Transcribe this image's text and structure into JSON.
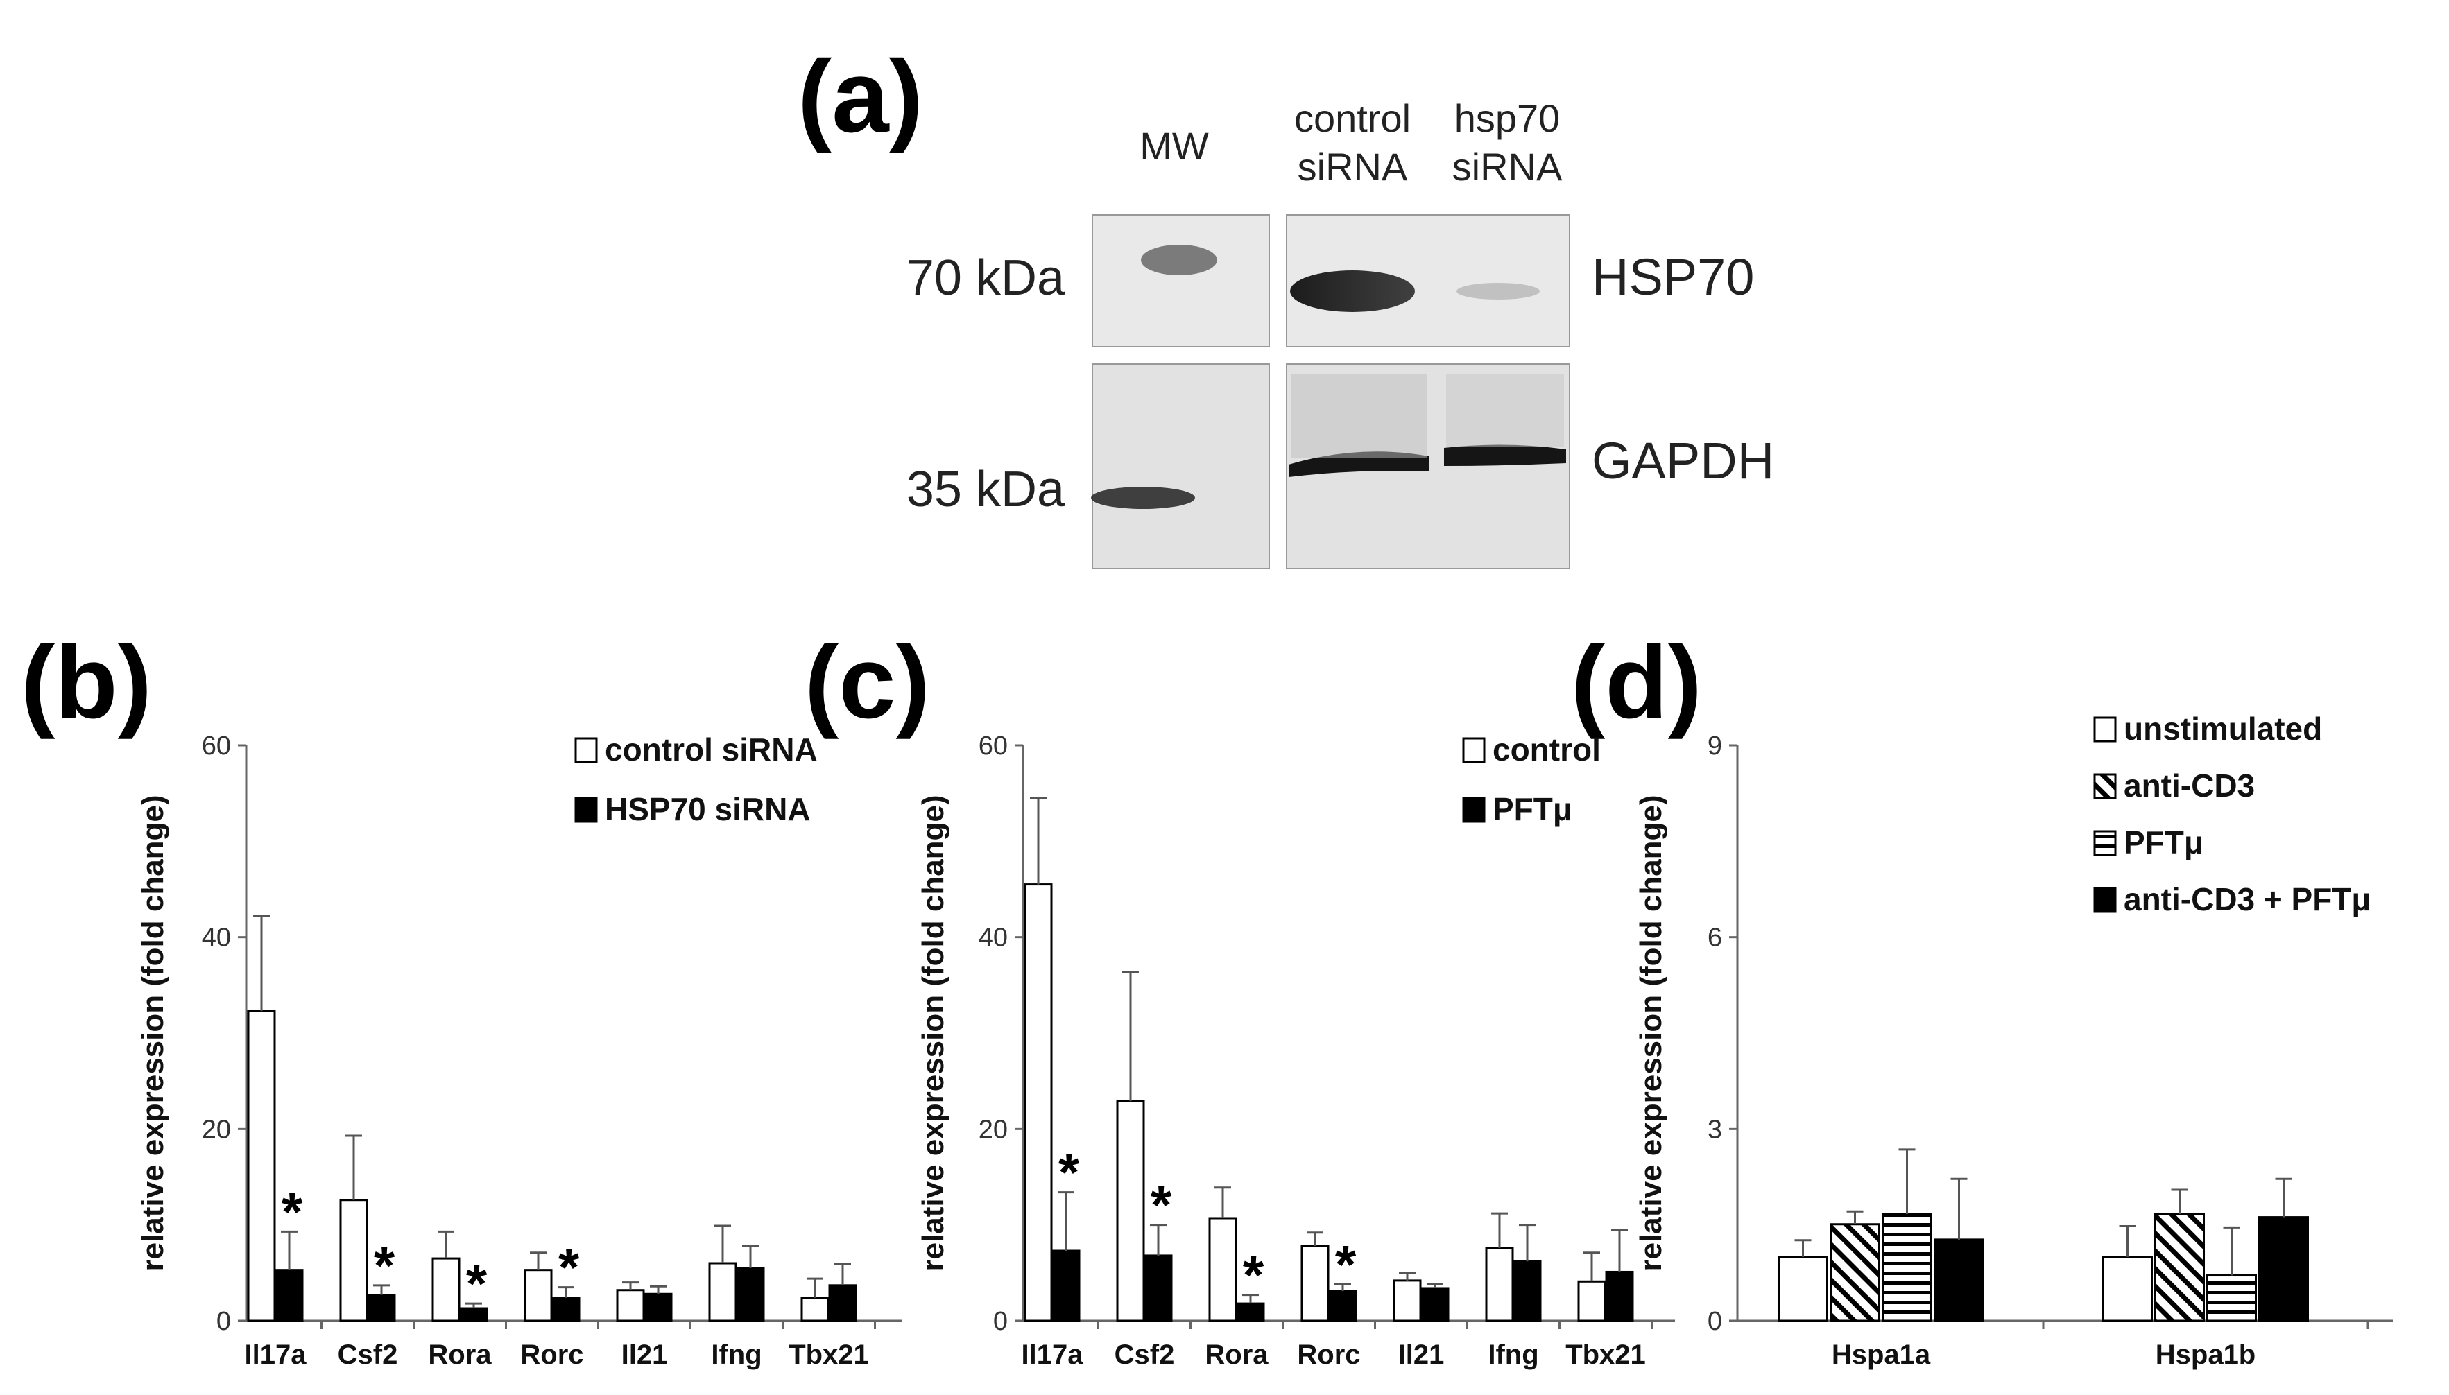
{
  "colors": {
    "filled": "#000000",
    "open": "#ffffff",
    "stroke": "#000000",
    "axis": "#666666"
  },
  "panels": {
    "a": "(a)",
    "b": "(b)",
    "c": "(c)",
    "d": "(d)"
  },
  "blot": {
    "lanes": {
      "mw": "MW",
      "control_l1": "control",
      "control_l2": "siRNA",
      "hsp70_l1": "hsp70",
      "hsp70_l2": "siRNA"
    },
    "size_top": "70 kDa",
    "size_bottom": "35 kDa",
    "protein_top": "HSP70",
    "protein_bottom": "GAPDH",
    "hsp70_band_intensity": {
      "control_siRNA": 1.0,
      "hsp70_siRNA": 0.1
    }
  },
  "chart_data": [
    {
      "panel": "b",
      "type": "bar",
      "ylabel": "relative expression (fold change)",
      "ylim": [
        0,
        60
      ],
      "yticks": [
        "0",
        "20",
        "40",
        "60"
      ],
      "categories": [
        "Il17a",
        "Csf2",
        "Rora",
        "Rorc",
        "Il21",
        "Ifng",
        "Tbx21"
      ],
      "series": [
        {
          "name": "control siRNA",
          "pattern": "open",
          "values": [
            32.3,
            12.6,
            6.5,
            5.3,
            3.2,
            6.0,
            2.4
          ],
          "errors": [
            9.9,
            6.7,
            2.8,
            1.8,
            0.8,
            3.9,
            2.0
          ]
        },
        {
          "name": "HSP70 siRNA",
          "pattern": "filled",
          "values": [
            5.3,
            2.7,
            1.3,
            2.4,
            2.8,
            5.5,
            3.7
          ],
          "errors": [
            4.0,
            1.0,
            0.5,
            1.1,
            0.8,
            2.3,
            2.2
          ]
        }
      ],
      "stars": [
        "*",
        "*",
        "*",
        "*",
        "",
        "",
        ""
      ],
      "legend": "top-right"
    },
    {
      "panel": "c",
      "type": "bar",
      "ylabel": "relative expression (fold change)",
      "ylim": [
        0,
        60
      ],
      "yticks": [
        "0",
        "20",
        "40",
        "60"
      ],
      "categories": [
        "Il17a",
        "Csf2",
        "Rora",
        "Rorc",
        "Il21",
        "Ifng",
        "Tbx21"
      ],
      "series": [
        {
          "name": "control",
          "pattern": "open",
          "values": [
            45.5,
            22.9,
            10.7,
            7.8,
            4.2,
            7.6,
            4.1
          ],
          "errors": [
            9.0,
            13.5,
            3.2,
            1.4,
            0.8,
            3.6,
            3.0
          ]
        },
        {
          "name": "PFTμ",
          "pattern": "filled",
          "values": [
            7.3,
            6.8,
            1.8,
            3.1,
            3.4,
            6.2,
            5.1
          ],
          "errors": [
            6.1,
            3.2,
            0.9,
            0.7,
            0.4,
            3.8,
            4.4
          ]
        }
      ],
      "stars": [
        "*",
        "*",
        "*",
        "*",
        "",
        "",
        ""
      ],
      "legend": "top-right"
    },
    {
      "panel": "d",
      "type": "bar",
      "ylabel": "relative expression (fold change)",
      "ylim": [
        0,
        9
      ],
      "yticks": [
        "0",
        "3",
        "6",
        "9"
      ],
      "categories": [
        "Hspa1a",
        "Hspa1b"
      ],
      "series": [
        {
          "name": "unstimulated",
          "pattern": "open",
          "values": [
            1.0,
            1.0
          ],
          "errors": [
            0.26,
            0.48
          ]
        },
        {
          "name": "anti-CD3",
          "pattern": "diagonal",
          "values": [
            1.51,
            1.67
          ],
          "errors": [
            0.2,
            0.38
          ]
        },
        {
          "name": "PFTμ",
          "pattern": "horizontal",
          "values": [
            1.67,
            0.71
          ],
          "errors": [
            1.01,
            0.75
          ]
        },
        {
          "name": "anti-CD3 + PFTμ",
          "pattern": "filled",
          "values": [
            1.27,
            1.62
          ],
          "errors": [
            0.95,
            0.6
          ]
        }
      ],
      "legend": "top-right"
    }
  ]
}
